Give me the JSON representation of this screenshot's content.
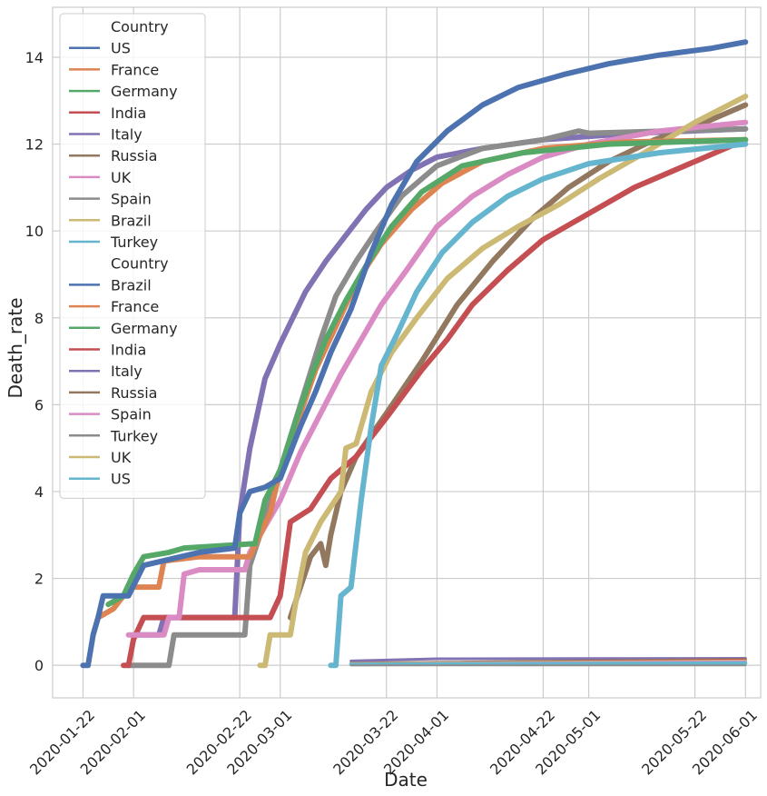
{
  "chart_data": {
    "type": "line",
    "xlabel": "Date",
    "ylabel": "Death_rate",
    "x_range": [
      "2020-01-16",
      "2020-06-04"
    ],
    "ylim": [
      -0.75,
      15.15
    ],
    "x_ticks": [
      "2020-01-22",
      "2020-02-01",
      "2020-02-22",
      "2020-03-01",
      "2020-03-22",
      "2020-04-01",
      "2020-04-22",
      "2020-05-01",
      "2020-05-22",
      "2020-06-01"
    ],
    "y_ticks": [
      0,
      2,
      4,
      6,
      8,
      10,
      12,
      14
    ],
    "grid": true,
    "legend": {
      "placement": "top-left",
      "groups": [
        {
          "title": "Country",
          "items": [
            {
              "label": "US",
              "color": "#4c72b0"
            },
            {
              "label": "France",
              "color": "#dd8452"
            },
            {
              "label": "Germany",
              "color": "#55a868"
            },
            {
              "label": "India",
              "color": "#c44e52"
            },
            {
              "label": "Italy",
              "color": "#8172b3"
            },
            {
              "label": "Russia",
              "color": "#937860"
            },
            {
              "label": "UK",
              "color": "#da8bc3"
            },
            {
              "label": "Spain",
              "color": "#8c8c8c"
            },
            {
              "label": "Brazil",
              "color": "#ccb974"
            },
            {
              "label": "Turkey",
              "color": "#64b5cd"
            }
          ]
        },
        {
          "title": "Country",
          "items": [
            {
              "label": "Brazil",
              "color": "#4c72b0"
            },
            {
              "label": "France",
              "color": "#dd8452"
            },
            {
              "label": "Germany",
              "color": "#55a868"
            },
            {
              "label": "India",
              "color": "#c44e52"
            },
            {
              "label": "Italy",
              "color": "#8172b3"
            },
            {
              "label": "Russia",
              "color": "#937860"
            },
            {
              "label": "Spain",
              "color": "#da8bc3"
            },
            {
              "label": "Turkey",
              "color": "#8c8c8c"
            },
            {
              "label": "UK",
              "color": "#ccb974"
            },
            {
              "label": "US",
              "color": "#64b5cd"
            }
          ]
        }
      ]
    },
    "series": [
      {
        "name": "Italy",
        "color": "#8172b3",
        "width": 6,
        "points": [
          [
            "2020-02-01",
            0.7
          ],
          [
            "2020-02-06",
            0.7
          ],
          [
            "2020-02-07",
            1.1
          ],
          [
            "2020-02-21",
            1.1
          ],
          [
            "2020-02-22",
            3.5
          ],
          [
            "2020-02-24",
            5.0
          ],
          [
            "2020-02-27",
            6.6
          ],
          [
            "2020-03-01",
            7.4
          ],
          [
            "2020-03-06",
            8.6
          ],
          [
            "2020-03-10",
            9.3
          ],
          [
            "2020-03-14",
            9.9
          ],
          [
            "2020-03-18",
            10.5
          ],
          [
            "2020-03-22",
            11.0
          ],
          [
            "2020-03-27",
            11.4
          ],
          [
            "2020-04-01",
            11.7
          ],
          [
            "2020-04-10",
            11.9
          ],
          [
            "2020-04-22",
            12.1
          ],
          [
            "2020-05-10",
            12.25
          ],
          [
            "2020-06-01",
            12.35
          ]
        ]
      },
      {
        "name": "Russia",
        "color": "#937860",
        "width": 6,
        "points": [
          [
            "2020-03-03",
            1.1
          ],
          [
            "2020-03-07",
            2.5
          ],
          [
            "2020-03-09",
            2.8
          ],
          [
            "2020-03-10",
            2.3
          ],
          [
            "2020-03-11",
            3.0
          ],
          [
            "2020-03-13",
            4.0
          ],
          [
            "2020-03-16",
            4.8
          ],
          [
            "2020-03-22",
            5.8
          ],
          [
            "2020-03-29",
            7.0
          ],
          [
            "2020-04-05",
            8.3
          ],
          [
            "2020-04-12",
            9.3
          ],
          [
            "2020-04-20",
            10.3
          ],
          [
            "2020-04-27",
            11.0
          ],
          [
            "2020-05-05",
            11.6
          ],
          [
            "2020-05-14",
            12.1
          ],
          [
            "2020-05-24",
            12.5
          ],
          [
            "2020-06-01",
            12.9
          ]
        ]
      },
      {
        "name": "Spain",
        "color": "#8c8c8c",
        "width": 6,
        "points": [
          [
            "2020-01-31",
            0.0
          ],
          [
            "2020-02-08",
            0.0
          ],
          [
            "2020-02-09",
            0.7
          ],
          [
            "2020-02-23",
            0.7
          ],
          [
            "2020-02-24",
            2.3
          ],
          [
            "2020-02-26",
            3.0
          ],
          [
            "2020-03-01",
            4.5
          ],
          [
            "2020-03-05",
            6.0
          ],
          [
            "2020-03-09",
            7.5
          ],
          [
            "2020-03-12",
            8.5
          ],
          [
            "2020-03-16",
            9.3
          ],
          [
            "2020-03-20",
            10.0
          ],
          [
            "2020-03-25",
            10.8
          ],
          [
            "2020-04-01",
            11.5
          ],
          [
            "2020-04-10",
            11.9
          ],
          [
            "2020-04-22",
            12.1
          ],
          [
            "2020-04-29",
            12.3
          ],
          [
            "2020-05-01",
            12.25
          ],
          [
            "2020-06-01",
            12.35
          ]
        ]
      },
      {
        "name": "India",
        "color": "#c44e52",
        "width": 6,
        "points": [
          [
            "2020-01-30",
            0.0
          ],
          [
            "2020-01-31",
            0.0
          ],
          [
            "2020-02-01",
            0.6
          ],
          [
            "2020-02-03",
            1.1
          ],
          [
            "2020-02-28",
            1.1
          ],
          [
            "2020-03-01",
            1.6
          ],
          [
            "2020-03-03",
            3.3
          ],
          [
            "2020-03-07",
            3.6
          ],
          [
            "2020-03-11",
            4.3
          ],
          [
            "2020-03-16",
            4.8
          ],
          [
            "2020-03-22",
            5.7
          ],
          [
            "2020-03-29",
            6.8
          ],
          [
            "2020-04-03",
            7.5
          ],
          [
            "2020-04-08",
            8.3
          ],
          [
            "2020-04-15",
            9.1
          ],
          [
            "2020-04-22",
            9.8
          ],
          [
            "2020-05-01",
            10.4
          ],
          [
            "2020-05-10",
            11.0
          ],
          [
            "2020-05-22",
            11.6
          ],
          [
            "2020-06-01",
            12.1
          ]
        ]
      },
      {
        "name": "UK",
        "color": "#da8bc3",
        "width": 6,
        "points": [
          [
            "2020-01-31",
            0.7
          ],
          [
            "2020-02-07",
            0.7
          ],
          [
            "2020-02-08",
            1.1
          ],
          [
            "2020-02-10",
            1.1
          ],
          [
            "2020-02-11",
            2.1
          ],
          [
            "2020-02-14",
            2.2
          ],
          [
            "2020-02-23",
            2.2
          ],
          [
            "2020-02-24",
            2.6
          ],
          [
            "2020-02-26",
            3.0
          ],
          [
            "2020-03-01",
            3.8
          ],
          [
            "2020-03-05",
            4.9
          ],
          [
            "2020-03-09",
            5.8
          ],
          [
            "2020-03-13",
            6.7
          ],
          [
            "2020-03-17",
            7.5
          ],
          [
            "2020-03-21",
            8.3
          ],
          [
            "2020-03-26",
            9.1
          ],
          [
            "2020-04-01",
            10.1
          ],
          [
            "2020-04-08",
            10.8
          ],
          [
            "2020-04-15",
            11.3
          ],
          [
            "2020-04-22",
            11.7
          ],
          [
            "2020-05-01",
            12.0
          ],
          [
            "2020-05-15",
            12.3
          ],
          [
            "2020-06-01",
            12.5
          ]
        ]
      },
      {
        "name": "Brazil",
        "color": "#ccb974",
        "width": 6,
        "points": [
          [
            "2020-02-26",
            0.0
          ],
          [
            "2020-02-27",
            0.0
          ],
          [
            "2020-02-28",
            0.7
          ],
          [
            "2020-03-03",
            0.7
          ],
          [
            "2020-03-04",
            1.4
          ],
          [
            "2020-03-06",
            2.6
          ],
          [
            "2020-03-09",
            3.3
          ],
          [
            "2020-03-13",
            4.0
          ],
          [
            "2020-03-14",
            5.0
          ],
          [
            "2020-03-16",
            5.1
          ],
          [
            "2020-03-19",
            6.3
          ],
          [
            "2020-03-23",
            7.2
          ],
          [
            "2020-03-28",
            8.0
          ],
          [
            "2020-04-03",
            8.9
          ],
          [
            "2020-04-10",
            9.6
          ],
          [
            "2020-04-17",
            10.1
          ],
          [
            "2020-04-25",
            10.6
          ],
          [
            "2020-05-03",
            11.2
          ],
          [
            "2020-05-12",
            11.8
          ],
          [
            "2020-05-22",
            12.5
          ],
          [
            "2020-06-01",
            13.1
          ]
        ]
      },
      {
        "name": "France",
        "color": "#dd8452",
        "width": 6,
        "points": [
          [
            "2020-01-24",
            0.7
          ],
          [
            "2020-01-25",
            1.1
          ],
          [
            "2020-01-28",
            1.3
          ],
          [
            "2020-01-30",
            1.6
          ],
          [
            "2020-02-01",
            1.8
          ],
          [
            "2020-02-06",
            1.8
          ],
          [
            "2020-02-07",
            2.4
          ],
          [
            "2020-02-14",
            2.5
          ],
          [
            "2020-02-24",
            2.5
          ],
          [
            "2020-02-28",
            3.5
          ],
          [
            "2020-03-01",
            4.5
          ],
          [
            "2020-03-05",
            5.8
          ],
          [
            "2020-03-08",
            6.8
          ],
          [
            "2020-03-12",
            7.8
          ],
          [
            "2020-03-16",
            8.8
          ],
          [
            "2020-03-21",
            9.7
          ],
          [
            "2020-03-27",
            10.5
          ],
          [
            "2020-04-02",
            11.1
          ],
          [
            "2020-04-10",
            11.6
          ],
          [
            "2020-04-22",
            11.9
          ],
          [
            "2020-05-08",
            12.05
          ],
          [
            "2020-06-01",
            12.1
          ]
        ]
      },
      {
        "name": "Germany",
        "color": "#55a868",
        "width": 6,
        "points": [
          [
            "2020-01-27",
            1.4
          ],
          [
            "2020-01-30",
            1.6
          ],
          [
            "2020-02-01",
            2.1
          ],
          [
            "2020-02-03",
            2.5
          ],
          [
            "2020-02-08",
            2.6
          ],
          [
            "2020-02-11",
            2.7
          ],
          [
            "2020-02-25",
            2.8
          ],
          [
            "2020-02-27",
            3.8
          ],
          [
            "2020-03-01",
            4.5
          ],
          [
            "2020-03-04",
            5.6
          ],
          [
            "2020-03-07",
            6.6
          ],
          [
            "2020-03-10",
            7.5
          ],
          [
            "2020-03-14",
            8.4
          ],
          [
            "2020-03-18",
            9.2
          ],
          [
            "2020-03-23",
            10.1
          ],
          [
            "2020-03-29",
            10.9
          ],
          [
            "2020-04-06",
            11.5
          ],
          [
            "2020-04-18",
            11.8
          ],
          [
            "2020-05-05",
            12.0
          ],
          [
            "2020-06-01",
            12.1
          ]
        ]
      },
      {
        "name": "US",
        "color": "#4c72b0",
        "width": 6,
        "points": [
          [
            "2020-01-22",
            0.0
          ],
          [
            "2020-01-23",
            0.0
          ],
          [
            "2020-01-24",
            0.7
          ],
          [
            "2020-01-25",
            1.1
          ],
          [
            "2020-01-26",
            1.6
          ],
          [
            "2020-01-31",
            1.6
          ],
          [
            "2020-02-03",
            2.3
          ],
          [
            "2020-02-14",
            2.6
          ],
          [
            "2020-02-21",
            2.7
          ],
          [
            "2020-02-22",
            3.5
          ],
          [
            "2020-02-24",
            4.0
          ],
          [
            "2020-02-27",
            4.1
          ],
          [
            "2020-03-01",
            4.3
          ],
          [
            "2020-03-05",
            5.5
          ],
          [
            "2020-03-08",
            6.3
          ],
          [
            "2020-03-11",
            7.2
          ],
          [
            "2020-03-15",
            8.2
          ],
          [
            "2020-03-19",
            9.5
          ],
          [
            "2020-03-23",
            10.6
          ],
          [
            "2020-03-28",
            11.6
          ],
          [
            "2020-04-03",
            12.3
          ],
          [
            "2020-04-10",
            12.9
          ],
          [
            "2020-04-17",
            13.3
          ],
          [
            "2020-04-26",
            13.6
          ],
          [
            "2020-05-05",
            13.85
          ],
          [
            "2020-05-15",
            14.05
          ],
          [
            "2020-05-25",
            14.2
          ],
          [
            "2020-06-01",
            14.35
          ]
        ]
      },
      {
        "name": "Turkey",
        "color": "#64b5cd",
        "width": 6,
        "points": [
          [
            "2020-03-11",
            0.0
          ],
          [
            "2020-03-12",
            0.0
          ],
          [
            "2020-03-13",
            1.6
          ],
          [
            "2020-03-15",
            1.8
          ],
          [
            "2020-03-17",
            3.8
          ],
          [
            "2020-03-19",
            5.5
          ],
          [
            "2020-03-21",
            6.9
          ],
          [
            "2020-03-24",
            7.6
          ],
          [
            "2020-03-28",
            8.6
          ],
          [
            "2020-04-02",
            9.5
          ],
          [
            "2020-04-08",
            10.2
          ],
          [
            "2020-04-15",
            10.8
          ],
          [
            "2020-04-22",
            11.2
          ],
          [
            "2020-05-01",
            11.55
          ],
          [
            "2020-05-15",
            11.8
          ],
          [
            "2020-06-01",
            12.0
          ]
        ]
      },
      {
        "name": "Italy",
        "color": "#8172b3",
        "width": 3,
        "points": [
          [
            "2020-03-15",
            0.1
          ],
          [
            "2020-04-01",
            0.15
          ],
          [
            "2020-06-01",
            0.16
          ]
        ]
      },
      {
        "name": "Russia",
        "color": "#937860",
        "width": 3,
        "points": [
          [
            "2020-03-15",
            0.05
          ],
          [
            "2020-06-01",
            0.14
          ]
        ]
      },
      {
        "name": "India",
        "color": "#c44e52",
        "width": 3,
        "points": [
          [
            "2020-03-15",
            0.03
          ],
          [
            "2020-06-01",
            0.12
          ]
        ]
      },
      {
        "name": "UK",
        "color": "#ccb974",
        "width": 3,
        "points": [
          [
            "2020-03-15",
            0.04
          ],
          [
            "2020-06-01",
            0.1
          ]
        ]
      },
      {
        "name": "Spain",
        "color": "#da8bc3",
        "width": 3,
        "points": [
          [
            "2020-03-15",
            0.03
          ],
          [
            "2020-06-01",
            0.08
          ]
        ]
      },
      {
        "name": "US",
        "color": "#64b5cd",
        "width": 4,
        "points": [
          [
            "2020-03-15",
            0.02
          ],
          [
            "2020-06-01",
            0.05
          ]
        ]
      },
      {
        "name": "Turkey",
        "color": "#8c8c8c",
        "width": 2,
        "points": [
          [
            "2020-03-15",
            0.0
          ],
          [
            "2020-06-01",
            0.0
          ]
        ]
      }
    ]
  }
}
